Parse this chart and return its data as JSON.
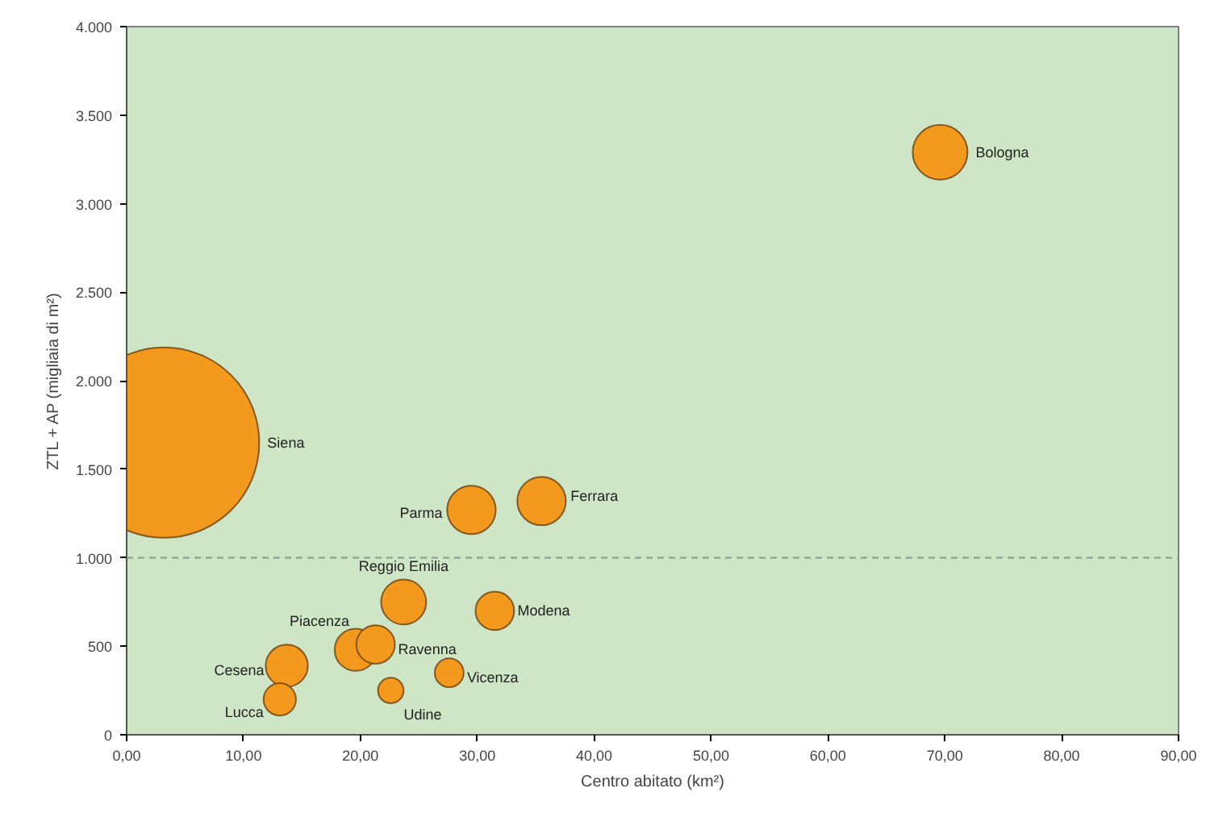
{
  "chart_data": {
    "type": "bubble",
    "xlabel": "Centro abitato (km²)",
    "ylabel": "ZTL + AP (migliaia di m²)",
    "x": [
      69.6,
      3.2,
      29.5,
      35.5,
      23.7,
      31.5,
      19.6,
      21.3,
      13.7,
      13.1,
      22.6,
      27.6
    ],
    "series": [
      {
        "color": "#f39a1e",
        "values": [
          3290,
          1650,
          1270,
          1320,
          750,
          700,
          480,
          510,
          390,
          200,
          250,
          350
        ],
        "sizes": [
          0.083,
          1,
          0.065,
          0.065,
          0.056,
          0.041,
          0.049,
          0.041,
          0.049,
          0.029,
          0.018,
          0.023
        ]
      }
    ],
    "annotations": [
      {
        "text": "Bologna",
        "x": 69.6,
        "y": 3290
      },
      "Siena",
      {
        "text": "Parma",
        "x": 29.5,
        "y": 1270
      },
      {
        "text": "Ferrara",
        "x": 35.5,
        "y": 1320
      },
      {
        "text": "Reggio Emilia",
        "x": 23.7,
        "y": 750
      },
      {
        "text": "Modena",
        "x": 31.5,
        "y": 700
      },
      {
        "text": "Piacenza",
        "x": 19.6,
        "y": 480
      },
      {
        "text": "Ravenna",
        "x": 21.3,
        "y": 510
      },
      {
        "text": "Cesena",
        "x": 13.7,
        "y": 390
      },
      {
        "text": "Lucca",
        "x": 13.1,
        "y": 200
      },
      {
        "text": "Udine",
        "x": 22.6,
        "y": 250
      },
      {
        "text": "Vicenza",
        "x": 27.6,
        "y": 350
      }
    ],
    "ref_lines": [
      {
        "axis": "y",
        "value": 1000,
        "color": "#8a9a88",
        "line_style": "dashed"
      }
    ],
    "xlim": [
      0,
      90
    ],
    "ylim": [
      0,
      4000
    ],
    "xticks": [
      {
        "value": 0,
        "label": "0,00"
      },
      {
        "value": 10,
        "label": "10,00"
      },
      {
        "value": 20,
        "label": "20,00"
      },
      {
        "value": 30,
        "label": "30,00"
      },
      {
        "value": 40,
        "label": "40,00"
      },
      {
        "value": 50,
        "label": "50,00"
      },
      {
        "value": 60,
        "label": "60,00"
      },
      {
        "value": 70,
        "label": "70,00"
      },
      {
        "value": 80,
        "label": "80,00"
      },
      {
        "value": 90,
        "label": "90,00"
      }
    ],
    "yticks": [
      {
        "value": 0,
        "label": "0"
      },
      {
        "value": 500,
        "label": "500"
      },
      {
        "value": 1000,
        "label": "1.000"
      },
      {
        "value": 1500,
        "label": "1.500"
      },
      {
        "value": 2000,
        "label": "2.000"
      },
      {
        "value": 2500,
        "label": "2.500"
      },
      {
        "value": 3000,
        "label": "3.000"
      },
      {
        "value": 3500,
        "label": "3.500"
      },
      {
        "value": 4000,
        "label": "4.000"
      }
    ],
    "grid": false
  }
}
